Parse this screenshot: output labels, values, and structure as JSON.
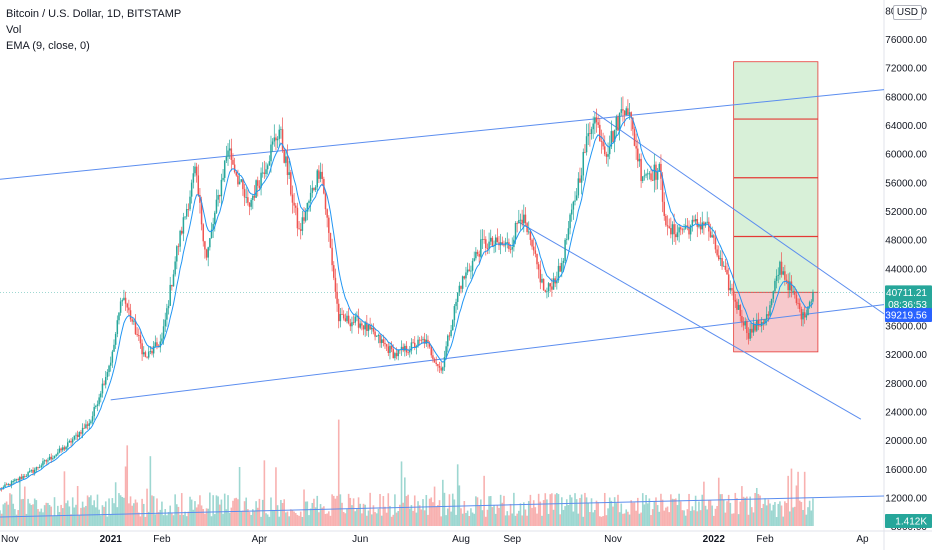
{
  "legend": {
    "symbol": "Bitcoin / U.S. Dollar, 1D, BITSTAMP",
    "volume": "Vol",
    "ema": "EMA (9, close, 0)"
  },
  "currency": "USD",
  "colors": {
    "up": "#26a69a",
    "down": "#ef5350",
    "ema": "#2196f3",
    "trendline": "#5b8def",
    "target_fill": "#d8f0d8",
    "stop_fill": "#f7c9cc",
    "target_line": "#e53935",
    "badge_current": "#26a69a",
    "badge_vwap": "#2962ff"
  },
  "price_badges": {
    "current_price": "40711.21",
    "countdown": "08:36:53",
    "line_price": "39219.56",
    "volume_value": "1.412K"
  },
  "chart_data": {
    "type": "candlestick",
    "title": "Bitcoin / U.S. Dollar, 1D, BITSTAMP",
    "y_axis": {
      "ticks": [
        8000,
        12000,
        16000,
        20000,
        24000,
        28000,
        32000,
        36000,
        44000,
        48000,
        52000,
        56000,
        60000,
        64000,
        68000,
        72000,
        76000,
        80000
      ],
      "tick_labels": [
        "8000.00",
        "12000.00",
        "16000.00",
        "20000.00",
        "24000.00",
        "28000.00",
        "32000.00",
        "36000.00",
        "44000.00",
        "48000.00",
        "52000.00",
        "56000.00",
        "60000.00",
        "64000.00",
        "68000.00",
        "72000.00",
        "76000.00",
        "80000.00"
      ],
      "range": [
        6000,
        81000
      ]
    },
    "x_axis": {
      "labels": [
        "Nov",
        "2021",
        "Feb",
        "Apr",
        "Jun",
        "Aug",
        "Sep",
        "Nov",
        "2022",
        "Feb",
        "Ap"
      ],
      "label_dates": [
        "2020-11-01",
        "2021-01-01",
        "2021-02-01",
        "2021-04-01",
        "2021-06-01",
        "2021-08-01",
        "2021-09-01",
        "2021-11-01",
        "2022-01-01",
        "2022-02-01",
        "2022-04-01"
      ],
      "range": [
        "2020-10-26",
        "2022-04-14"
      ]
    },
    "price_path": [
      {
        "date": "2020-10-26",
        "close": 13200
      },
      {
        "date": "2020-11-15",
        "close": 15800
      },
      {
        "date": "2020-12-05",
        "close": 19200
      },
      {
        "date": "2020-12-20",
        "close": 22800
      },
      {
        "date": "2021-01-02",
        "close": 32000
      },
      {
        "date": "2021-01-08",
        "close": 40500
      },
      {
        "date": "2021-01-22",
        "close": 31500
      },
      {
        "date": "2021-02-01",
        "close": 34000
      },
      {
        "date": "2021-02-10",
        "close": 46500
      },
      {
        "date": "2021-02-21",
        "close": 57500
      },
      {
        "date": "2021-02-28",
        "close": 45500
      },
      {
        "date": "2021-03-13",
        "close": 61000
      },
      {
        "date": "2021-03-25",
        "close": 52500
      },
      {
        "date": "2021-04-13",
        "close": 63500
      },
      {
        "date": "2021-04-25",
        "close": 49000
      },
      {
        "date": "2021-05-08",
        "close": 58500
      },
      {
        "date": "2021-05-19",
        "close": 37000
      },
      {
        "date": "2021-06-01",
        "close": 36500
      },
      {
        "date": "2021-06-22",
        "close": 32000
      },
      {
        "date": "2021-07-10",
        "close": 34000
      },
      {
        "date": "2021-07-20",
        "close": 29800
      },
      {
        "date": "2021-07-31",
        "close": 41500
      },
      {
        "date": "2021-08-14",
        "close": 47500
      },
      {
        "date": "2021-08-31",
        "close": 47200
      },
      {
        "date": "2021-09-06",
        "close": 52000
      },
      {
        "date": "2021-09-21",
        "close": 40500
      },
      {
        "date": "2021-09-30",
        "close": 43800
      },
      {
        "date": "2021-10-15",
        "close": 60500
      },
      {
        "date": "2021-10-20",
        "close": 65500
      },
      {
        "date": "2021-10-28",
        "close": 60500
      },
      {
        "date": "2021-11-09",
        "close": 67500
      },
      {
        "date": "2021-11-18",
        "close": 57500
      },
      {
        "date": "2021-11-29",
        "close": 57500
      },
      {
        "date": "2021-12-04",
        "close": 49000
      },
      {
        "date": "2021-12-27",
        "close": 50500
      },
      {
        "date": "2022-01-10",
        "close": 41700
      },
      {
        "date": "2022-01-22",
        "close": 35000
      },
      {
        "date": "2022-02-03",
        "close": 37500
      },
      {
        "date": "2022-02-10",
        "close": 44500
      },
      {
        "date": "2022-02-24",
        "close": 37200
      },
      {
        "date": "2022-03-02",
        "close": 40711
      }
    ],
    "ema": {
      "name": "EMA (9, close, 0)"
    },
    "annotations": {
      "upper_channel": [
        {
          "date": "2020-10-26",
          "price": 56500
        },
        {
          "date": "2022-04-14",
          "price": 69000
        }
      ],
      "lower_channel": [
        {
          "date": "2021-01-01",
          "price": 25700
        },
        {
          "date": "2022-04-14",
          "price": 39000
        }
      ],
      "descending_upper": [
        {
          "date": "2021-10-20",
          "price": 66000
        },
        {
          "date": "2022-04-14",
          "price": 37700
        }
      ],
      "descending_lower": [
        {
          "date": "2021-09-05",
          "price": 50500
        },
        {
          "date": "2022-03-31",
          "price": 23000
        }
      ],
      "volume_trend": [
        {
          "date": "2020-10-26",
          "vol": 0.3
        },
        {
          "date": "2022-04-14",
          "vol": 1.0
        }
      ],
      "position": {
        "start": "2022-01-13",
        "end": "2022-03-05",
        "entry": 40711.21,
        "stop": 32400,
        "targets": [
          48500,
          56700,
          64900,
          72900
        ]
      }
    }
  }
}
